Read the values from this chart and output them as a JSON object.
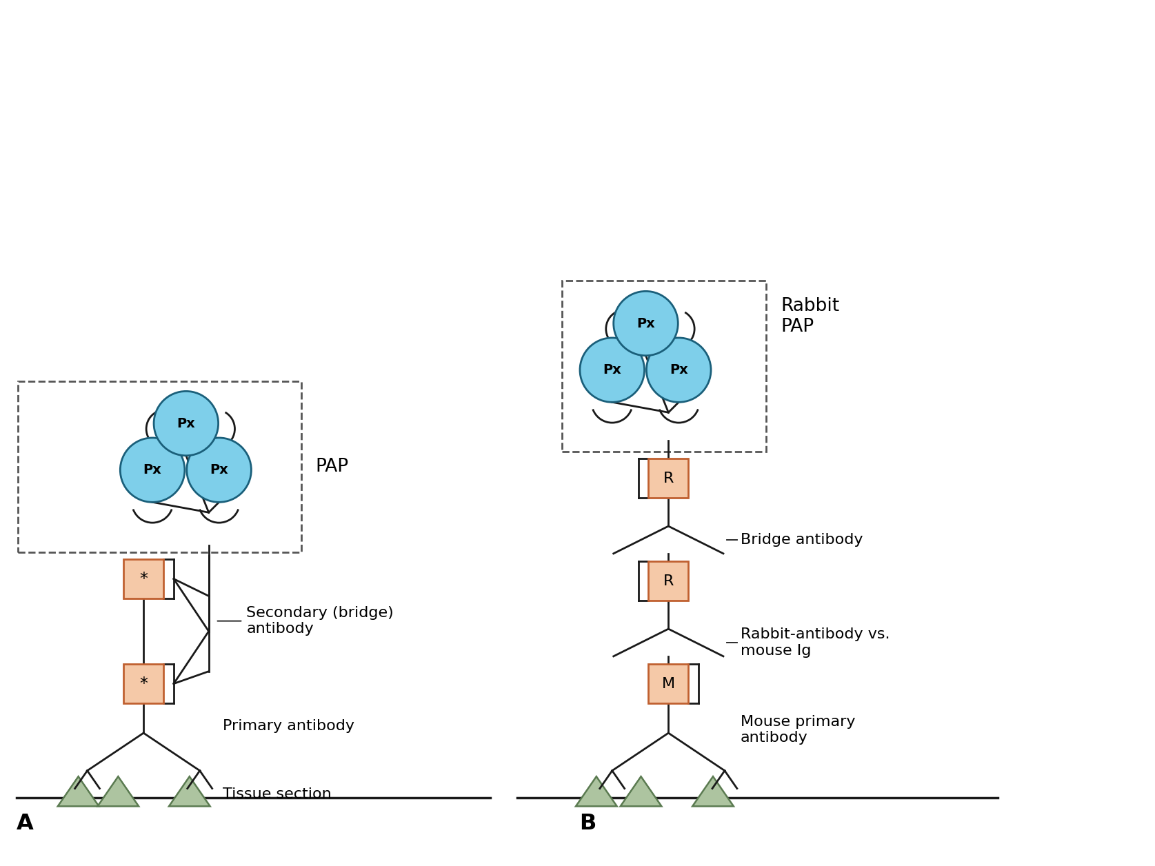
{
  "bg_color": "#ffffff",
  "px_circle_color": "#7ecfea",
  "px_circle_edge": "#1a5f7a",
  "box_fill": "#f5c9a8",
  "box_edge": "#c06030",
  "triangle_fill": "#adc4a0",
  "triangle_edge": "#5a7a50",
  "line_color": "#1a1a1a",
  "dashed_color": "#555555",
  "label_A": "A",
  "label_B": "B",
  "label_PAP": "PAP",
  "label_rabbit_pap": "Rabbit\nPAP",
  "label_secondary": "Secondary (bridge)\nantibody",
  "label_primary": "Primary antibody",
  "label_tissue": "Tissue section",
  "label_bridge": "Bridge antibody",
  "label_rabbit_mouse": "Rabbit-antibody vs.\nmouse Ig",
  "label_mouse_primary": "Mouse primary\nantibody",
  "lw": 2.0,
  "fig_w": 16.75,
  "fig_h": 12.56
}
